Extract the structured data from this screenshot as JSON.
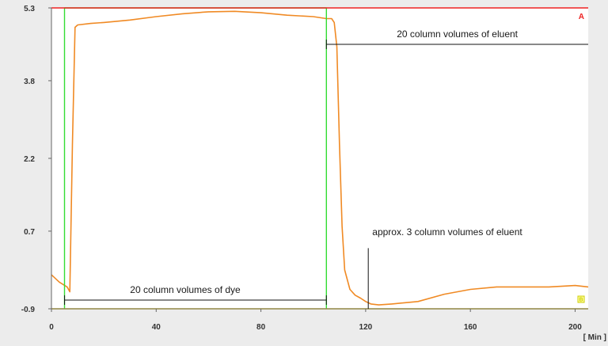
{
  "chart_data": {
    "type": "line",
    "x_unit_label": "[ Min ]",
    "xlim": [
      0,
      205
    ],
    "ylim": [
      -0.9,
      5.3
    ],
    "x_ticks": [
      0,
      40,
      80,
      120,
      160,
      200
    ],
    "y_ticks": [
      -0.9,
      0.7,
      2.2,
      3.8,
      5.3
    ],
    "y_tick_labels": [
      "-0.9",
      "0.7",
      "2.2",
      "3.8",
      "5.3"
    ],
    "grid": false,
    "legend": "none",
    "corner_markers": [
      {
        "label": "A",
        "color": "#ee2222",
        "position": "top-right"
      },
      {
        "label": "B",
        "color": "#cccc00",
        "position": "bottom-right"
      }
    ],
    "series": [
      {
        "color": "#f08a24",
        "x": [
          0,
          3,
          6,
          7,
          8,
          9,
          10,
          15,
          20,
          30,
          40,
          50,
          60,
          70,
          80,
          90,
          100,
          105,
          107,
          108,
          109,
          110,
          111,
          112,
          114,
          116,
          118,
          120,
          122,
          125,
          130,
          140,
          150,
          160,
          170,
          180,
          190,
          200,
          205
        ],
        "y": [
          -0.2,
          -0.35,
          -0.45,
          -0.55,
          2.5,
          4.9,
          4.95,
          4.98,
          5.0,
          5.05,
          5.12,
          5.18,
          5.22,
          5.23,
          5.2,
          5.15,
          5.12,
          5.08,
          5.08,
          5.0,
          4.5,
          2.5,
          0.8,
          -0.1,
          -0.5,
          -0.62,
          -0.68,
          -0.75,
          -0.8,
          -0.82,
          -0.8,
          -0.75,
          -0.6,
          -0.5,
          -0.45,
          -0.45,
          -0.45,
          -0.42,
          -0.45
        ]
      },
      {
        "color": "#33dd33",
        "x": [
          5,
          5,
          105,
          105
        ],
        "y": [
          -0.9,
          5.3,
          5.3,
          -0.9
        ]
      },
      {
        "color": "#ee2222",
        "x": [
          0,
          5,
          105,
          205
        ],
        "y": [
          5.3,
          5.3,
          5.3,
          5.3
        ]
      },
      {
        "color": "#e8c800",
        "x": [
          0,
          205
        ],
        "y": [
          -0.9,
          -0.9
        ]
      }
    ],
    "annotations": [
      {
        "text": "20 column volumes of eluent",
        "span": [
          105,
          205
        ],
        "line_y": 4.55
      },
      {
        "text": "20 column volumes of dye",
        "span": [
          5,
          105
        ],
        "line_y": -0.72
      },
      {
        "text": "approx. 3 column volumes of eluent",
        "pointer_x": 121,
        "pointer_y_top": 0.35
      }
    ]
  }
}
